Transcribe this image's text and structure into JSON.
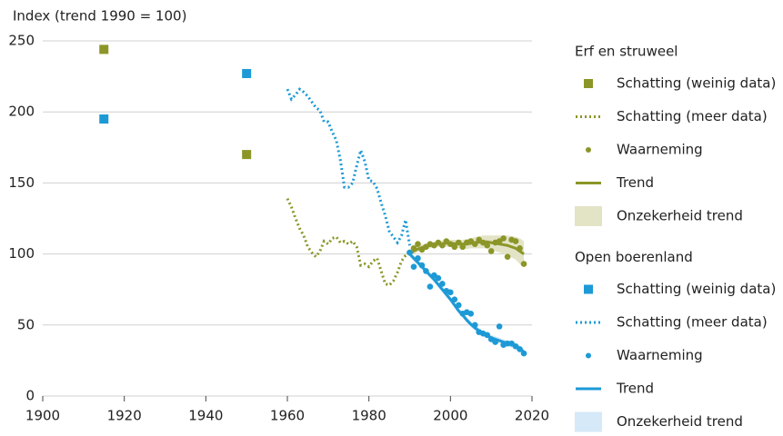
{
  "chart_data": {
    "type": "line",
    "y_label": "Index (trend 1990 = 100)",
    "xlim": [
      1900,
      2020
    ],
    "xticks": [
      1900,
      1920,
      1940,
      1960,
      1980,
      2000,
      2020
    ],
    "ylim": [
      0,
      250
    ],
    "yticks": [
      0,
      50,
      100,
      150,
      200,
      250
    ],
    "series_groups": [
      {
        "title": "Erf en struweel",
        "series": [
          {
            "name": "Schatting (weinig data)",
            "style": "square",
            "color": "#8c9628",
            "x": [
              1915,
              1950
            ],
            "values": [
              244,
              170
            ]
          },
          {
            "name": "Schatting (meer data)",
            "style": "dotted",
            "color": "#8c9628",
            "x": [
              1960,
              1961,
              1962,
              1963,
              1964,
              1965,
              1966,
              1967,
              1968,
              1969,
              1970,
              1971,
              1972,
              1973,
              1974,
              1975,
              1976,
              1977,
              1978,
              1979,
              1980,
              1981,
              1982,
              1983,
              1984,
              1985,
              1986,
              1987,
              1988,
              1989,
              1990
            ],
            "values": [
              139,
              133,
              125,
              118,
              113,
              105,
              101,
              98,
              102,
              109,
              107,
              111,
              112,
              108,
              109,
              107,
              109,
              105,
              92,
              93,
              91,
              95,
              97,
              88,
              79,
              78,
              81,
              87,
              95,
              99,
              101
            ]
          },
          {
            "name": "Waarneming",
            "style": "dots",
            "color": "#8c9628",
            "x": [
              1990,
              1991,
              1992,
              1993,
              1994,
              1995,
              1996,
              1997,
              1998,
              1999,
              2000,
              2001,
              2002,
              2003,
              2004,
              2005,
              2006,
              2007,
              2008,
              2009,
              2010,
              2011,
              2012,
              2013,
              2014,
              2015,
              2016,
              2017,
              2018
            ],
            "values": [
              101,
              104,
              107,
              103,
              105,
              107,
              106,
              108,
              106,
              109,
              107,
              105,
              108,
              105,
              108,
              109,
              107,
              110,
              108,
              106,
              102,
              108,
              109,
              111,
              98,
              110,
              109,
              104,
              93
            ]
          },
          {
            "name": "Trend",
            "style": "line",
            "color": "#8c9628",
            "x": [
              1990,
              1991,
              1992,
              1993,
              1994,
              1995,
              1996,
              1997,
              1998,
              1999,
              2000,
              2001,
              2002,
              2003,
              2004,
              2005,
              2006,
              2007,
              2008,
              2009,
              2010,
              2011,
              2012,
              2013,
              2014,
              2015,
              2016,
              2017,
              2018
            ],
            "values": [
              100,
              102,
              103.5,
              104.5,
              105.5,
              106,
              106.5,
              107,
              107.3,
              107.5,
              107.5,
              107.3,
              107,
              107,
              107,
              107.5,
              108,
              108.3,
              108.5,
              108.5,
              108,
              107.5,
              107,
              106.5,
              106,
              105,
              104,
              102,
              100
            ]
          },
          {
            "name": "Onzekerheid trend",
            "style": "band",
            "color": "#e3e4c6",
            "x": [
              1990,
              1991,
              1992,
              1993,
              1994,
              1995,
              1996,
              1997,
              1998,
              1999,
              2000,
              2001,
              2002,
              2003,
              2004,
              2005,
              2006,
              2007,
              2008,
              2009,
              2010,
              2011,
              2012,
              2013,
              2014,
              2015,
              2016,
              2017,
              2018
            ],
            "upper": [
              102,
              104,
              105.5,
              106.5,
              107.5,
              108,
              108.5,
              109,
              109.5,
              110,
              110,
              110,
              110,
              110,
              110.5,
              111,
              112,
              112.5,
              113,
              113,
              113,
              113,
              113,
              113,
              113,
              112.5,
              112,
              111,
              109
            ],
            "lower": [
              98,
              100,
              101.5,
              102.5,
              103.5,
              104,
              104.5,
              105,
              105,
              105,
              105,
              104.5,
              104,
              104,
              103.5,
              104,
              104,
              104,
              104,
              104,
              103,
              102,
              101,
              100,
              99,
              97.5,
              96,
              93,
              91
            ]
          }
        ]
      },
      {
        "title": "Open boerenland",
        "series": [
          {
            "name": "Schatting (weinig data)",
            "style": "square",
            "color": "#1d9ad6",
            "x": [
              1915,
              1950
            ],
            "values": [
              195,
              227
            ]
          },
          {
            "name": "Schatting (meer data)",
            "style": "dotted",
            "color": "#1d9ad6",
            "x": [
              1960,
              1961,
              1962,
              1963,
              1964,
              1965,
              1966,
              1967,
              1968,
              1969,
              1970,
              1971,
              1972,
              1973,
              1974,
              1975,
              1976,
              1977,
              1978,
              1979,
              1980,
              1981,
              1982,
              1983,
              1984,
              1985,
              1986,
              1987,
              1988,
              1989,
              1990
            ],
            "values": [
              216,
              209,
              212,
              216,
              214,
              211,
              207,
              203,
              201,
              193,
              193,
              186,
              180,
              166,
              147,
              147,
              150,
              162,
              173,
              165,
              152,
              151,
              146,
              136,
              127,
              116,
              112,
              108,
              113,
              124,
              106
            ]
          },
          {
            "name": "Waarneming",
            "style": "dots",
            "color": "#1d9ad6",
            "x": [
              1990,
              1991,
              1992,
              1993,
              1994,
              1995,
              1996,
              1997,
              1998,
              1999,
              2000,
              2001,
              2002,
              2003,
              2004,
              2005,
              2006,
              2007,
              2008,
              2009,
              2010,
              2011,
              2012,
              2013,
              2014,
              2015,
              2016,
              2017,
              2018
            ],
            "values": [
              101,
              91,
              97,
              92,
              88,
              77,
              85,
              83,
              79,
              74,
              73,
              68,
              64,
              58,
              59,
              58,
              50,
              45,
              44,
              43,
              40,
              38,
              49,
              36,
              37,
              37,
              35,
              33,
              30
            ]
          },
          {
            "name": "Trend",
            "style": "line",
            "color": "#1d9ad6",
            "x": [
              1990,
              1991,
              1992,
              1993,
              1994,
              1995,
              1996,
              1997,
              1998,
              1999,
              2000,
              2001,
              2002,
              2003,
              2004,
              2005,
              2006,
              2007,
              2008,
              2009,
              2010,
              2011,
              2012,
              2013,
              2014,
              2015,
              2016,
              2017,
              2018
            ],
            "values": [
              100,
              97,
              94,
              91,
              88,
              85,
              82,
              78.5,
              75,
              71.5,
              68,
              64,
              60,
              57,
              53.5,
              50.5,
              48,
              46,
              44,
              42.5,
              41,
              40,
              39,
              38,
              37,
              36,
              35,
              33.5,
              31
            ]
          },
          {
            "name": "Onzekerheid trend",
            "style": "band",
            "color": "#d6e9f8",
            "x": [
              1990,
              1991,
              1992,
              1993,
              1994,
              1995,
              1996,
              1997,
              1998,
              1999,
              2000,
              2001,
              2002,
              2003,
              2004,
              2005,
              2006,
              2007,
              2008,
              2009,
              2010,
              2011,
              2012,
              2013,
              2014,
              2015,
              2016,
              2017,
              2018
            ],
            "upper": [
              102,
              99,
              96,
              93,
              90,
              87,
              84,
              80.5,
              77,
              73.5,
              70,
              66,
              62,
              59,
              55.5,
              52.5,
              50,
              48,
              46,
              44.5,
              43,
              42,
              41,
              40,
              39,
              38,
              37,
              35.5,
              33
            ],
            "lower": [
              98,
              95,
              92,
              89,
              86,
              83,
              80,
              76.5,
              73,
              69.5,
              66,
              62,
              58,
              55,
              51.5,
              48.5,
              46,
              44,
              42,
              40.5,
              39,
              38,
              37,
              36,
              35,
              34,
              33,
              31.5,
              29
            ]
          }
        ]
      }
    ]
  }
}
